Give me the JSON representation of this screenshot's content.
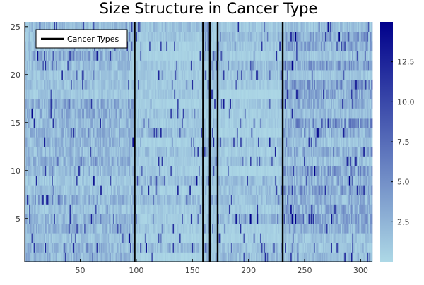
{
  "chart_data": {
    "type": "heatmap",
    "title": "Size Structure in Cancer Type",
    "x_range": [
      1,
      310
    ],
    "y_range": [
      0.5,
      25.5
    ],
    "x_ticks": [
      50,
      100,
      150,
      200,
      250,
      300
    ],
    "y_ticks": [
      5,
      10,
      15,
      20,
      25
    ],
    "n_columns": 310,
    "n_rows": 25,
    "color_range": [
      0,
      15
    ],
    "colorbar_ticks": [
      2.5,
      5.0,
      7.5,
      10.0,
      12.5
    ],
    "colorbar_tick_labels": [
      "2.5",
      "5.0",
      "7.5",
      "10.0",
      "12.5"
    ],
    "colormap": [
      "#add8e6",
      "#00008b"
    ],
    "legend": {
      "label": "Cancer Types",
      "position": "top-left",
      "line_color": "#000000"
    },
    "boundaries": {
      "x": [
        98,
        159,
        165,
        172,
        230
      ],
      "color": "#000000"
    },
    "blocks": [
      {
        "x_start": 1,
        "x_end": 98,
        "typical": 2.3,
        "row_mean_range": [
          1.2,
          3.5
        ]
      },
      {
        "x_start": 99,
        "x_end": 159,
        "typical": 1.4,
        "row_mean_range": [
          0.4,
          2.5
        ]
      },
      {
        "x_start": 160,
        "x_end": 165,
        "typical": 1.6,
        "row_mean_range": [
          0.5,
          2.8
        ]
      },
      {
        "x_start": 166,
        "x_end": 172,
        "typical": 2.2,
        "row_mean_range": [
          0.8,
          3.5
        ]
      },
      {
        "x_start": 173,
        "x_end": 230,
        "typical": 1.3,
        "row_mean_range": [
          0.3,
          2.4
        ]
      },
      {
        "x_start": 231,
        "x_end": 310,
        "typical": 3.0,
        "row_mean_range": [
          1.2,
          5.2
        ]
      }
    ]
  }
}
